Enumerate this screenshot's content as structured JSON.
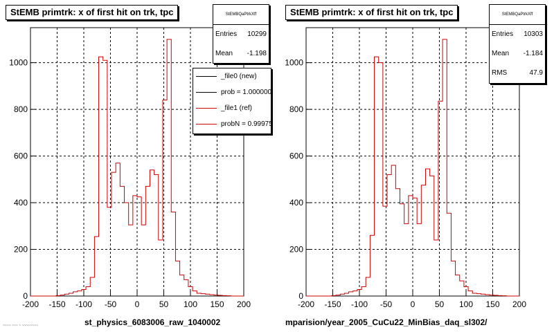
{
  "colors": {
    "new": "#000000",
    "ref": "#cc0000"
  },
  "chart_data": [
    {
      "type": "histogram",
      "title": "StEMB primtrk: x of first hit on trk, tpc",
      "xlabel": "st_physics_6083006_raw_1040002",
      "xlim": [
        -200,
        200
      ],
      "ylim": [
        0,
        1150
      ],
      "xticks": [
        -200,
        -150,
        -100,
        -50,
        0,
        50,
        100,
        150,
        200
      ],
      "yticks": [
        0,
        200,
        400,
        600,
        800,
        1000
      ],
      "grid": true,
      "bin_width": 8,
      "bin_start": -200,
      "series": [
        {
          "name": "_file1 (ref)",
          "color": "#cc0000",
          "values": [
            0,
            0,
            0,
            0,
            0,
            0,
            2,
            4,
            8,
            12,
            18,
            22,
            28,
            40,
            80,
            255,
            1025,
            1010,
            380,
            530,
            570,
            470,
            400,
            305,
            430,
            425,
            305,
            470,
            540,
            520,
            240,
            840,
            1100,
            360,
            150,
            90,
            70,
            40,
            22,
            12,
            10,
            8,
            6,
            4,
            3,
            2,
            1,
            0,
            0,
            0
          ]
        }
      ],
      "stats": {
        "header": "StEMBQaPtrkXff",
        "rows": [
          {
            "label": "Entries",
            "value": "10299"
          },
          {
            "label": "Mean",
            "value": "-1.198"
          }
        ]
      },
      "legend": {
        "position": "top-right",
        "entries": [
          {
            "label": "_file0 (new)",
            "color": "#000000"
          },
          {
            "label": "prob = 1.000000",
            "color": "#000000"
          },
          {
            "label": "_file1 (ref)",
            "color": "#cc0000"
          },
          {
            "label": "probN = 0.99975",
            "color": "#cc0000"
          }
        ]
      }
    },
    {
      "type": "histogram",
      "title": "StEMB primtrk: x of first hit on trk, tpc",
      "xlabel": "mparision/year_2005_CuCu22_MinBias_daq_sl302/",
      "xlim": [
        -200,
        200
      ],
      "ylim": [
        0,
        1150
      ],
      "xticks": [
        -200,
        -150,
        -100,
        -50,
        0,
        50,
        100,
        150,
        200
      ],
      "yticks": [
        0,
        200,
        400,
        600,
        800,
        1000
      ],
      "grid": true,
      "bin_width": 8,
      "bin_start": -200,
      "series": [
        {
          "name": "",
          "color": "#cc0000",
          "values": [
            0,
            0,
            0,
            0,
            0,
            0,
            2,
            4,
            8,
            12,
            18,
            22,
            28,
            40,
            80,
            260,
            1025,
            1000,
            385,
            520,
            560,
            460,
            395,
            310,
            430,
            420,
            310,
            475,
            545,
            515,
            240,
            835,
            1100,
            355,
            150,
            90,
            65,
            40,
            22,
            12,
            10,
            8,
            6,
            4,
            3,
            2,
            1,
            0,
            0,
            0
          ]
        }
      ],
      "stats": {
        "header": "StEMBQaPtrkXff",
        "rows": [
          {
            "label": "Entries",
            "value": "10303"
          },
          {
            "label": "Mean",
            "value": "-1.184"
          },
          {
            "label": "RMS",
            "value": "47.9"
          }
        ]
      }
    }
  ],
  "footer": "~~~~ ~~~ ~ ~~~~~~~~"
}
